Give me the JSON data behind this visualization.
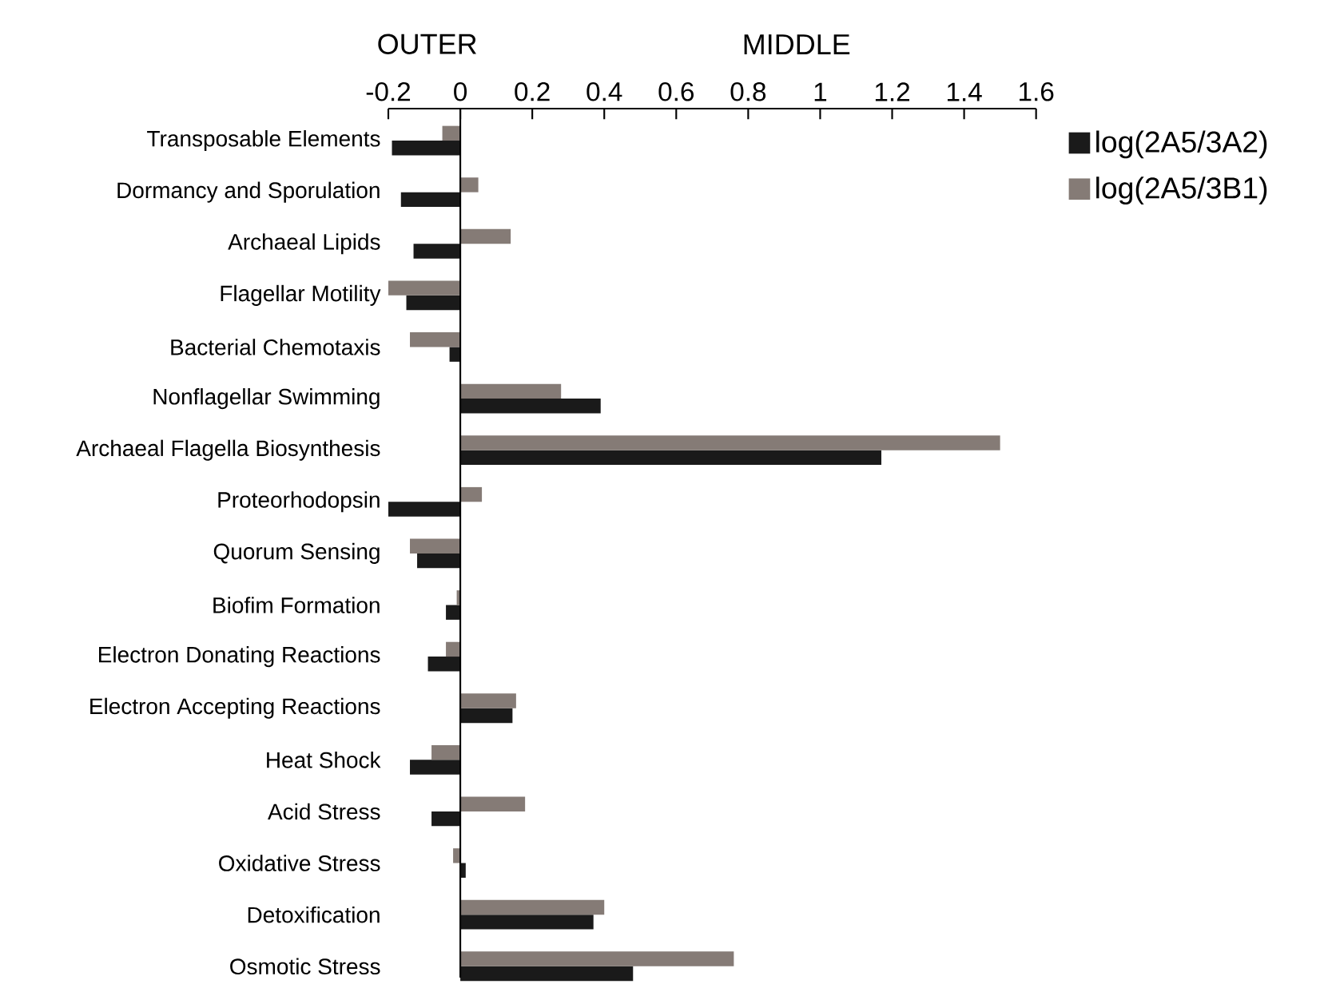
{
  "chart_data": {
    "type": "bar",
    "orientation": "horizontal",
    "categories": [
      "Transposable  Elements",
      "Dormancy and Sporulation",
      "Archaeal Lipids",
      "Flagellar Motility",
      "Bacterial Chemotaxis",
      "Nonflagellar Swimming",
      "Archaeal Flagella Biosynthesis",
      "Proteorhodopsin",
      "Quorum Sensing",
      "Biofim Formation",
      "Electron Donating Reactions",
      "Electron Accepting Reactions",
      "Heat Shock",
      "Acid Stress",
      "Oxidative Stress",
      "Detoxification",
      "Osmotic  Stress"
    ],
    "series": [
      {
        "name": "log(2A5/3A2)",
        "color": "#1a1a1a",
        "values": [
          -0.19,
          -0.165,
          -0.13,
          -0.15,
          -0.03,
          0.39,
          1.17,
          -0.2,
          -0.12,
          -0.04,
          -0.09,
          0.145,
          -0.14,
          -0.08,
          0.015,
          0.37,
          0.48
        ]
      },
      {
        "name": "log(2A5/3B1)",
        "color": "#857b76",
        "values": [
          -0.05,
          0.05,
          0.14,
          -0.2,
          -0.14,
          0.28,
          1.5,
          0.06,
          -0.14,
          -0.01,
          -0.04,
          0.155,
          -0.08,
          0.18,
          -0.02,
          0.4,
          0.76
        ]
      }
    ],
    "xlim": [
      -0.2,
      1.6
    ],
    "xticks": [
      -0.2,
      0,
      0.2,
      0.4,
      0.6,
      0.8,
      1,
      1.2,
      1.4,
      1.6
    ],
    "annotations": [
      "OUTER",
      "MIDDLE"
    ],
    "legend": "right"
  }
}
